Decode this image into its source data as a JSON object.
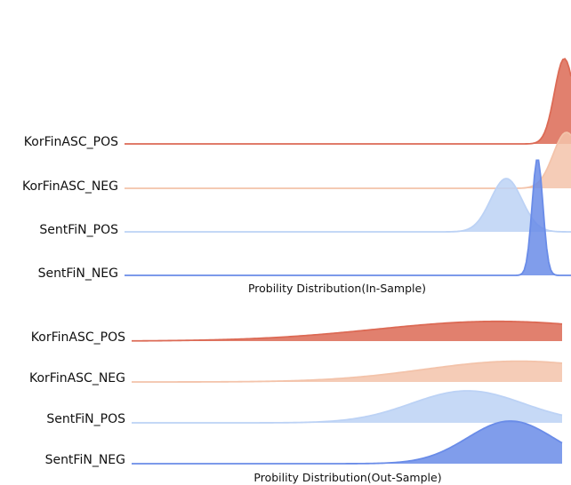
{
  "chart_data": [
    {
      "type": "area",
      "style": "ridgeline",
      "xlabel": "Probility Distribution(In-Sample)",
      "ylabel": "",
      "series": [
        {
          "name": "KorFinASC_POS",
          "color": "#dc6a55",
          "mean": 0.985,
          "sd": 0.022,
          "relative_peak": 1.6
        },
        {
          "name": "KorFinASC_NEG",
          "color": "#f3c3aa",
          "mean": 0.99,
          "sd": 0.03,
          "relative_peak": 1.05
        },
        {
          "name": "SentFiN_POS",
          "color": "#bcd2f5",
          "mean": 0.855,
          "sd": 0.035,
          "relative_peak": 1.0
        },
        {
          "name": "SentFiN_NEG",
          "color": "#6a8ce8",
          "mean": 0.925,
          "sd": 0.012,
          "relative_peak": 2.2
        }
      ]
    },
    {
      "type": "area",
      "style": "ridgeline",
      "xlabel": "Probility Distribution(Out-Sample)",
      "ylabel": "",
      "series": [
        {
          "name": "KorFinASC_POS",
          "color": "#dc6a55",
          "mean": 0.85,
          "sd": 0.28,
          "relative_peak": 0.37
        },
        {
          "name": "KorFinASC_NEG",
          "color": "#f3c3aa",
          "mean": 0.9,
          "sd": 0.22,
          "relative_peak": 0.39
        },
        {
          "name": "SentFiN_POS",
          "color": "#bcd2f5",
          "mean": 0.78,
          "sd": 0.13,
          "relative_peak": 0.6
        },
        {
          "name": "SentFiN_NEG",
          "color": "#6a8ce8",
          "mean": 0.88,
          "sd": 0.1,
          "relative_peak": 0.8
        }
      ]
    }
  ]
}
